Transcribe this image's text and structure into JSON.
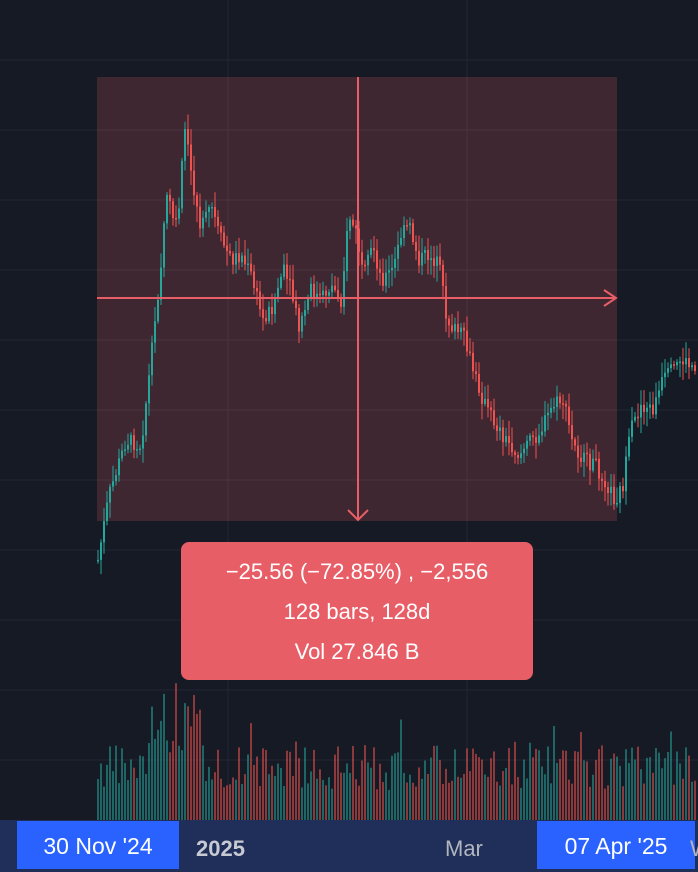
{
  "measure": {
    "change": "−25.56 (−72.85%) , −2,556",
    "bars": "128 bars, 128d",
    "volume": "Vol 27.846 B",
    "color": "#e85e67"
  },
  "time_axis": {
    "start_badge": "30 Nov '24",
    "end_badge": "07 Apr '25",
    "labels": [
      "2025",
      "Mar"
    ],
    "cut_label": "W"
  },
  "chart_data": {
    "type": "candlestick",
    "up_color": "#26a69a",
    "down_color": "#ef5350",
    "measured_bars": 128,
    "price_change": -25.56,
    "percent_change": -72.85,
    "volume_total": "27.846 B"
  }
}
